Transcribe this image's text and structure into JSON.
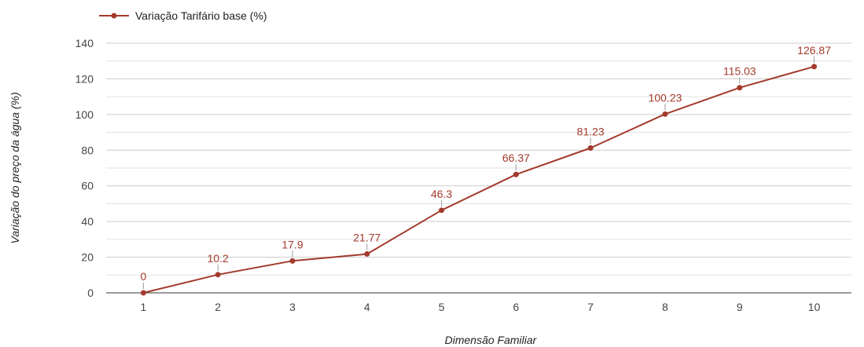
{
  "chart_data": {
    "type": "line",
    "categories": [
      "1",
      "2",
      "3",
      "4",
      "5",
      "6",
      "7",
      "8",
      "9",
      "10"
    ],
    "series": [
      {
        "name": "Variação Tarifário base (%)",
        "values": [
          0,
          10.2,
          17.9,
          21.77,
          46.3,
          66.37,
          81.23,
          100.23,
          115.03,
          126.87
        ],
        "labels": [
          "0",
          "10.2",
          "17.9",
          "21.77",
          "46.3",
          "66.37",
          "81.23",
          "100.23",
          "115.03",
          "126.87"
        ]
      }
    ],
    "xlabel": "Dimensão Familiar",
    "ylabel": "Variação do preço da água (%)",
    "ylim": [
      0,
      140
    ],
    "yticks": [
      0,
      20,
      40,
      60,
      80,
      100,
      120,
      140
    ],
    "minor_grid": true,
    "legend_position": "top-left",
    "colors": {
      "series": "#a33a2c",
      "grid": "#cccccc",
      "baseline": "#333333"
    }
  }
}
